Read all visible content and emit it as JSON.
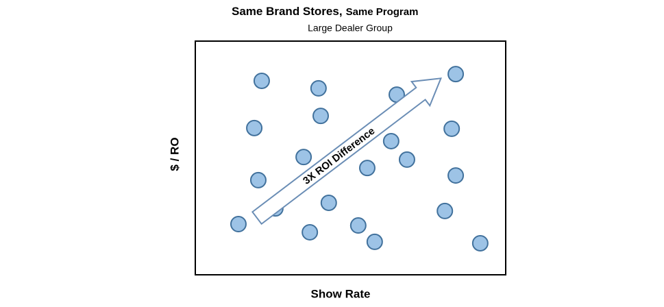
{
  "chart_data": {
    "type": "scatter",
    "title": "Same Brand Stores,",
    "title_part2": "Same Program",
    "subtitle": "Large Dealer Group",
    "xlabel": "Show Rate",
    "ylabel": "$ / RO",
    "annotation": "3X ROI Difference",
    "color": "#9dc3e6",
    "xlim": [
      0,
      100
    ],
    "ylim": [
      0,
      100
    ],
    "x": [
      21.4,
      39.7,
      64.9,
      83.9,
      19.0,
      40.4,
      82.6,
      34.9,
      63.1,
      55.4,
      68.2,
      20.3,
      83.9,
      25.8,
      43.0,
      80.4,
      13.9,
      36.9,
      52.5,
      57.8,
      91.8
    ],
    "values": [
      83.0,
      79.8,
      77.1,
      85.9,
      62.8,
      68.0,
      62.5,
      50.4,
      57.2,
      45.7,
      49.3,
      40.5,
      42.5,
      28.4,
      30.8,
      27.3,
      21.7,
      18.2,
      21.1,
      14.1,
      13.5
    ]
  }
}
